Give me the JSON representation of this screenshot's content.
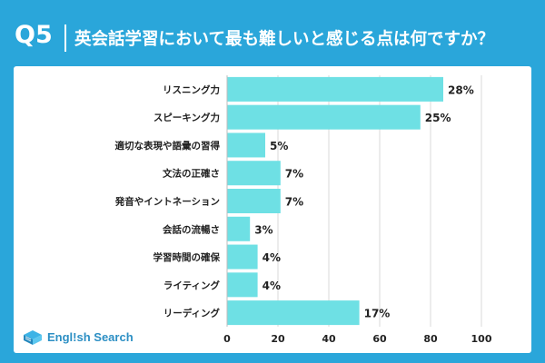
{
  "header": {
    "question": "Q5",
    "title": "英会話学習において最も難しいと感じる点は何ですか？"
  },
  "logo": {
    "text": "Engl!sh Search"
  },
  "colors": {
    "background": "#2aa6da",
    "bar": "#6ee0e4",
    "panel": "#ffffff"
  },
  "chart_data": {
    "type": "bar",
    "orientation": "horizontal",
    "title": "英会話学習において最も難しいと感じる点は何ですか？",
    "categories": [
      "リスニング力",
      "スピーキング力",
      "適切な表現や語彙の習得",
      "文法の正確さ",
      "発音やイントネーション",
      "会話の流暢さ",
      "学習時間の確保",
      "ライティング",
      "リーディング"
    ],
    "values": [
      85,
      76,
      15,
      21,
      21,
      9,
      12,
      12,
      52
    ],
    "data_labels": [
      "28%",
      "25%",
      "5%",
      "7%",
      "7%",
      "3%",
      "4%",
      "4%",
      "17%"
    ],
    "xlim": [
      0,
      100
    ],
    "xticks": [
      0,
      20,
      40,
      60,
      80,
      100
    ],
    "xlabel": "",
    "ylabel": "",
    "grid": true
  }
}
